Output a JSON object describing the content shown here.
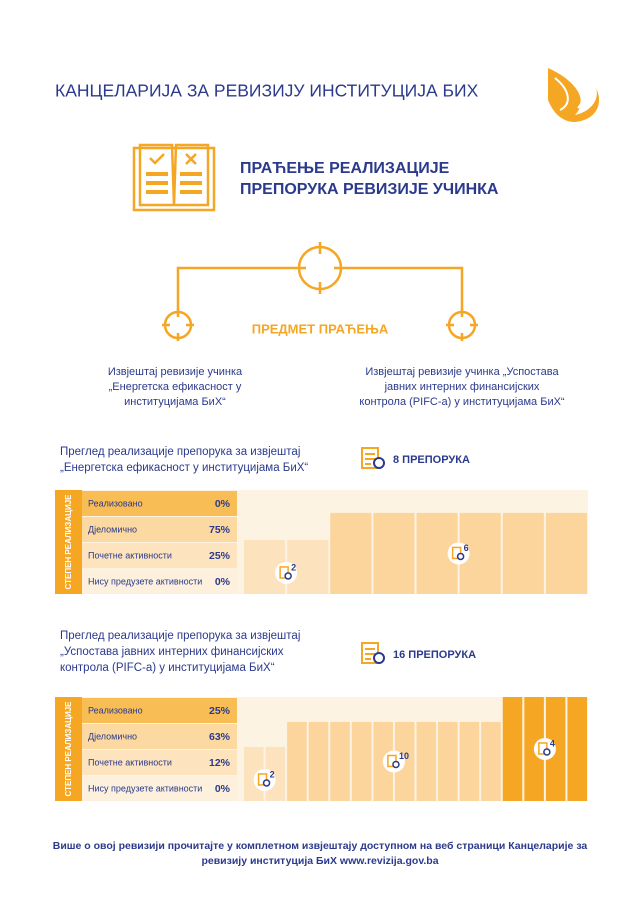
{
  "header": {
    "title": "КАНЦЕЛАРИЈА ЗА РЕВИЗИЈУ ИНСТИТУЦИЈА БИХ"
  },
  "subject": {
    "title": [
      "ПРАЋЕЊЕ РЕАЛИЗАЦИЈЕ",
      "ПРЕПОРУКА РЕВИЗИЈЕ УЧИНКА"
    ],
    "label": "ПРЕДМЕТ ПРАЋЕЊА",
    "reports": [
      [
        "Извјештај ревизије учинка",
        "„Енергетска ефикасност у",
        "институцијама БиХ“"
      ],
      [
        "Извјештај ревизије учинка „Успостава",
        "јавних интерних финансијских",
        "контрола (PIFC-а) у институцијама БиХ“"
      ]
    ]
  },
  "sections": [
    {
      "title": [
        "Преглед реализације препорука за извјештај",
        "„Енергетска ефикасност у институцијама БиХ“"
      ],
      "count_label": "8 ПРЕПОРУКА",
      "side_label": "СТЕПЕН РЕАЛИЗАЦИЈЕ",
      "rows": [
        {
          "label": "Реализовано",
          "value": "0%"
        },
        {
          "label": "Дјеломично",
          "value": "75%"
        },
        {
          "label": "Почетне активности",
          "value": "25%"
        },
        {
          "label": "Нису предузете активности",
          "value": "0%"
        }
      ],
      "groups": [
        2,
        6
      ]
    },
    {
      "title": [
        "Преглед реализације препорука за извјештај",
        "„Успостава јавних интерних финансијских",
        "контрола (PIFC-а) у институцијама БиХ“"
      ],
      "count_label": "16 ПРЕПОРУКА",
      "side_label": "СТЕПЕН РЕАЛИЗАЦИЈЕ",
      "rows": [
        {
          "label": "Реализовано",
          "value": "25%"
        },
        {
          "label": "Дјеломично",
          "value": "63%"
        },
        {
          "label": "Почетне активности",
          "value": "12%"
        },
        {
          "label": "Нису предузете активности",
          "value": "0%"
        }
      ],
      "groups": [
        2,
        10,
        4
      ]
    }
  ],
  "footer": [
    "Више о овој ревизији прочитајте у комплетном извјештају доступном на веб страници Канцеларије за",
    "ревизију институција БиХ www.revizija.gov.ba"
  ]
}
